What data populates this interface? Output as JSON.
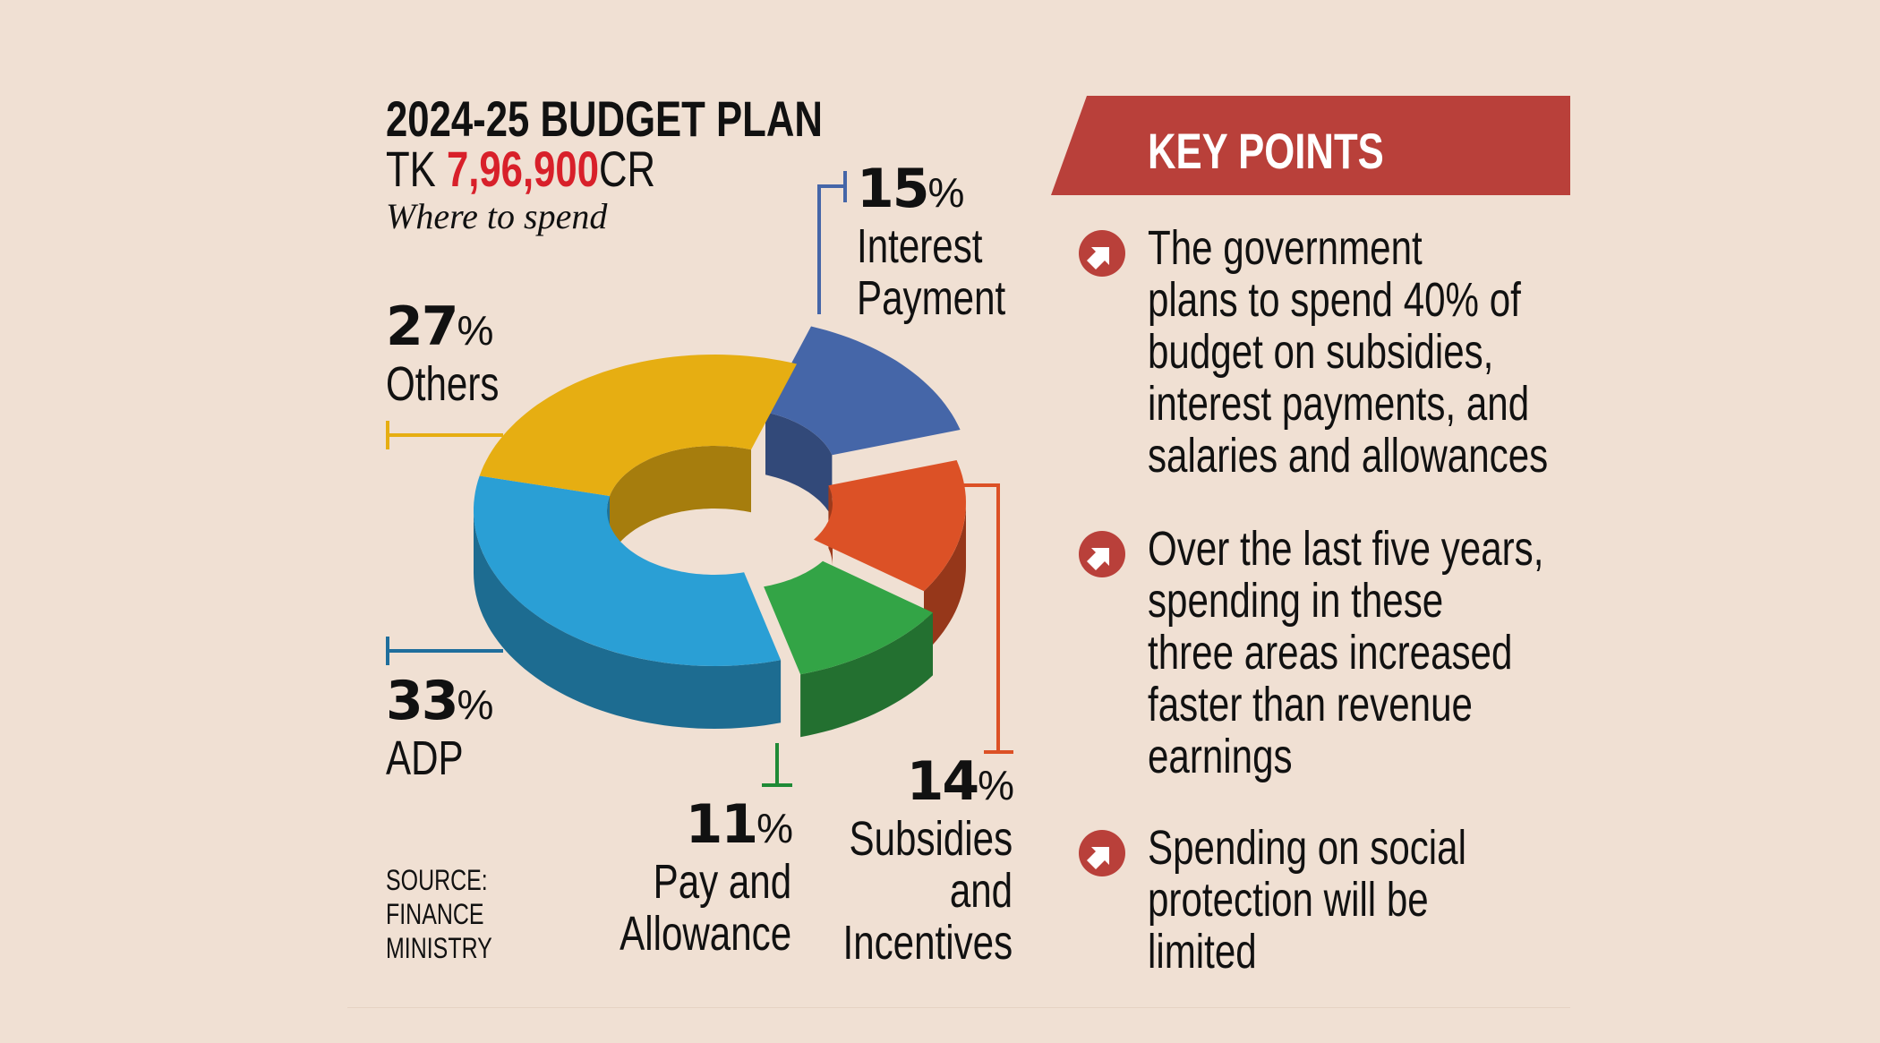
{
  "header": {
    "title": "2024-25 BUDGET PLAN",
    "total_prefix": "TK ",
    "total_value": "7,96,900",
    "total_suffix": "CR",
    "subtitle": "Where to spend"
  },
  "chart_data": {
    "type": "pie",
    "variant": "3d-donut",
    "title": "2024-25 BUDGET PLAN",
    "subtitle": "Where to spend",
    "categories": [
      "Interest Payment",
      "Subsidies and Incentives",
      "Pay and Allowance",
      "ADP",
      "Others"
    ],
    "values": [
      15,
      14,
      11,
      33,
      27
    ],
    "unit": "%",
    "colors": [
      "#4566a8",
      "#dc5126",
      "#33a446",
      "#2a9fd5",
      "#e6ae12"
    ],
    "labels": [
      {
        "pct": "15",
        "lines": [
          "Interest",
          "Payment"
        ]
      },
      {
        "pct": "14",
        "lines": [
          "Subsidies",
          "and",
          "Incentives"
        ]
      },
      {
        "pct": "11",
        "lines": [
          "Pay and",
          "Allowance"
        ]
      },
      {
        "pct": "33",
        "lines": [
          "ADP"
        ]
      },
      {
        "pct": "27",
        "lines": [
          "Others"
        ]
      }
    ],
    "percent_sign": "%"
  },
  "source": {
    "lines": [
      "SOURCE:",
      "FINANCE",
      "MINISTRY"
    ]
  },
  "key_points": {
    "heading": "KEY POINTS",
    "accent": "#b9403a",
    "icon": "arrow-up-right-circle-icon",
    "items": [
      {
        "lines": [
          "The government",
          "plans to spend 40% of",
          "budget on subsidies,",
          "interest payments, and",
          "salaries and allowances"
        ]
      },
      {
        "lines": [
          "Over the last five years,",
          "spending in these",
          "three areas increased",
          "faster than revenue",
          "earnings"
        ]
      },
      {
        "lines": [
          "Spending on social",
          "protection will be",
          "limited"
        ]
      }
    ]
  }
}
